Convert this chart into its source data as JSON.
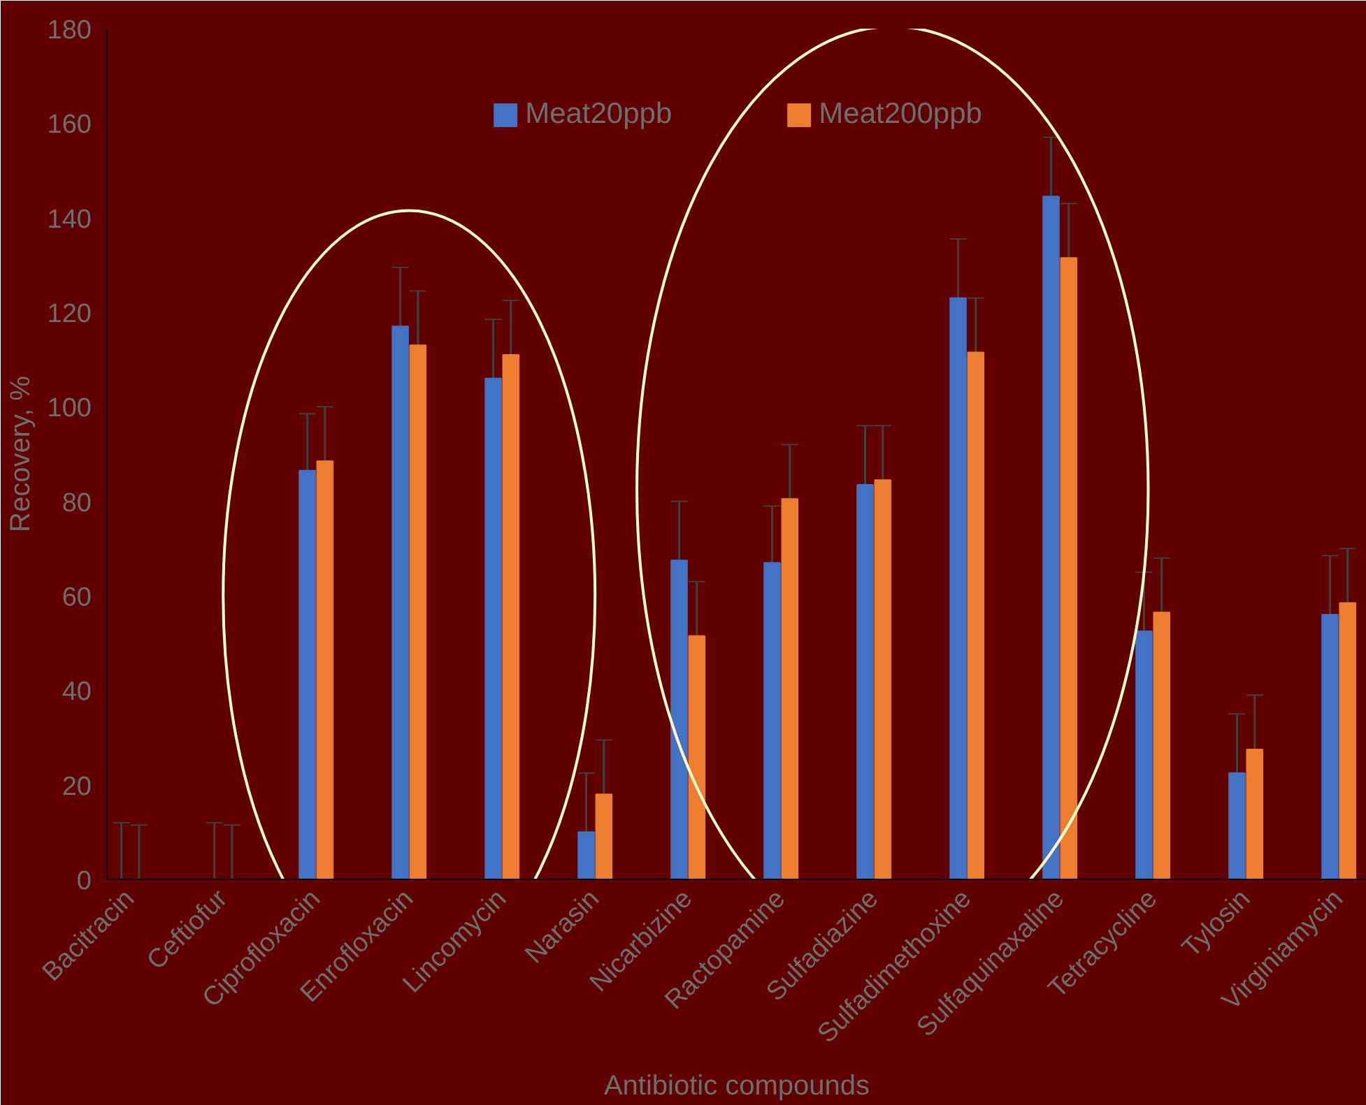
{
  "chart_data": {
    "type": "bar",
    "xlabel": "Antibiotic compounds",
    "ylabel": "Recovery, %",
    "categories": [
      "Bacitracin",
      "Ceftiofur",
      "Ciprofloxacin",
      "Enrofloxacin",
      "Lincomycin",
      "Narasin",
      "Nicarbizine",
      "Ractopamine",
      "Sulfadiazine",
      "Sulfadimethoxine",
      "Sulfaquinaxaline",
      "Tetracycline",
      "Tylosin",
      "Virginiamycin"
    ],
    "series": [
      {
        "name": "Meat20ppb",
        "color": "#4472c4",
        "values": [
          0,
          0,
          86.5,
          117,
          106,
          10,
          67.5,
          67,
          83.5,
          123,
          144.5,
          52.5,
          22.5,
          56
        ],
        "errors": [
          [
            0,
            12
          ],
          [
            0,
            12
          ],
          [
            86.5,
            98.5
          ],
          [
            117,
            129.5
          ],
          [
            106,
            118.5
          ],
          [
            10,
            22.5
          ],
          [
            67.5,
            80
          ],
          [
            67,
            79
          ],
          [
            83.5,
            96
          ],
          [
            123,
            135.5
          ],
          [
            144.5,
            157
          ],
          [
            52.5,
            65
          ],
          [
            22.5,
            35
          ],
          [
            56,
            68.5
          ]
        ]
      },
      {
        "name": "Meat200ppb",
        "color": "#ed7d31",
        "values": [
          0,
          0,
          88.5,
          113,
          111,
          18,
          51.5,
          80.5,
          84.5,
          111.5,
          131.5,
          56.5,
          27.5,
          58.5
        ],
        "errors": [
          [
            0,
            11.5
          ],
          [
            0,
            11.5
          ],
          [
            88.5,
            100
          ],
          [
            113,
            124.5
          ],
          [
            111,
            122.5
          ],
          [
            18,
            29.5
          ],
          [
            51.5,
            63
          ],
          [
            80.5,
            92
          ],
          [
            84.5,
            96
          ],
          [
            111.5,
            123
          ],
          [
            131.5,
            143
          ],
          [
            56.5,
            68
          ],
          [
            27.5,
            39
          ],
          [
            58.5,
            70
          ]
        ]
      }
    ],
    "ylim": [
      0,
      180
    ],
    "yticks": [
      0,
      20,
      40,
      60,
      80,
      100,
      120,
      140,
      160,
      180
    ],
    "grid": false,
    "legend": "top"
  }
}
